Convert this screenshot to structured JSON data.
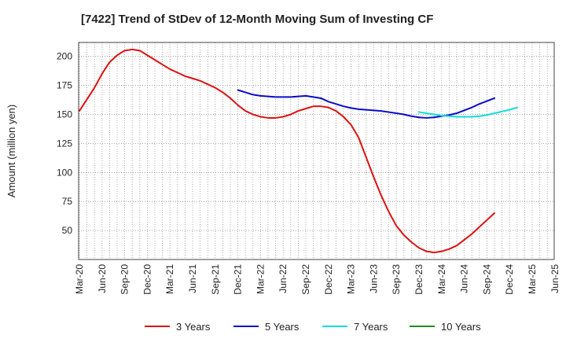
{
  "chart_data": {
    "type": "line",
    "title": "[7422]  Trend of StDev of 12-Month Moving Sum of Investing CF",
    "xlabel": "",
    "ylabel": "Amount (million yen)",
    "ylim": [
      25,
      212
    ],
    "yticks": [
      50,
      75,
      100,
      125,
      150,
      175,
      200
    ],
    "x_ticks": [
      "Mar-20",
      "Jun-20",
      "Sep-20",
      "Dec-20",
      "Mar-21",
      "Jun-21",
      "Sep-21",
      "Dec-21",
      "Mar-22",
      "Jun-22",
      "Sep-22",
      "Dec-22",
      "Mar-23",
      "Jun-23",
      "Sep-23",
      "Dec-23",
      "Mar-24",
      "Jun-24",
      "Sep-24",
      "Dec-24",
      "Mar-25",
      "Jun-25"
    ],
    "x_start": "Mar-20",
    "grid": true,
    "legend_position": "bottom",
    "series": [
      {
        "name": "3 Years",
        "color": "#dd1111",
        "start_index": 0,
        "values": [
          153,
          163,
          173,
          185,
          195,
          201,
          205,
          206,
          205,
          201,
          197,
          193,
          189,
          186,
          183,
          181,
          179,
          176,
          173,
          169,
          164,
          158,
          153,
          150,
          148,
          147,
          147,
          148,
          150,
          153,
          155,
          157,
          157,
          156,
          153,
          148,
          141,
          130,
          113,
          96,
          80,
          66,
          54,
          46,
          40,
          35,
          32,
          31,
          32,
          34,
          37,
          42,
          47,
          53,
          59,
          65
        ]
      },
      {
        "name": "5 Years",
        "color": "#0a0ac8",
        "start_index": 21,
        "values": [
          171,
          169,
          167,
          166,
          165.5,
          165,
          165,
          165,
          165.5,
          166,
          165,
          164,
          161,
          159,
          157,
          155.5,
          154.5,
          154,
          153.5,
          153,
          152,
          151,
          150,
          148.5,
          147.5,
          147,
          147.5,
          148.5,
          149.5,
          151,
          153.5,
          156,
          159,
          161.5,
          164
        ]
      },
      {
        "name": "7 Years",
        "color": "#11dddd",
        "start_index": 45,
        "values": [
          152,
          151,
          150,
          149,
          148.5,
          148,
          148,
          148,
          148.5,
          149.5,
          151,
          152.5,
          154,
          156
        ]
      },
      {
        "name": "10 Years",
        "color": "#228b22",
        "start_index": 0,
        "values": []
      }
    ]
  }
}
